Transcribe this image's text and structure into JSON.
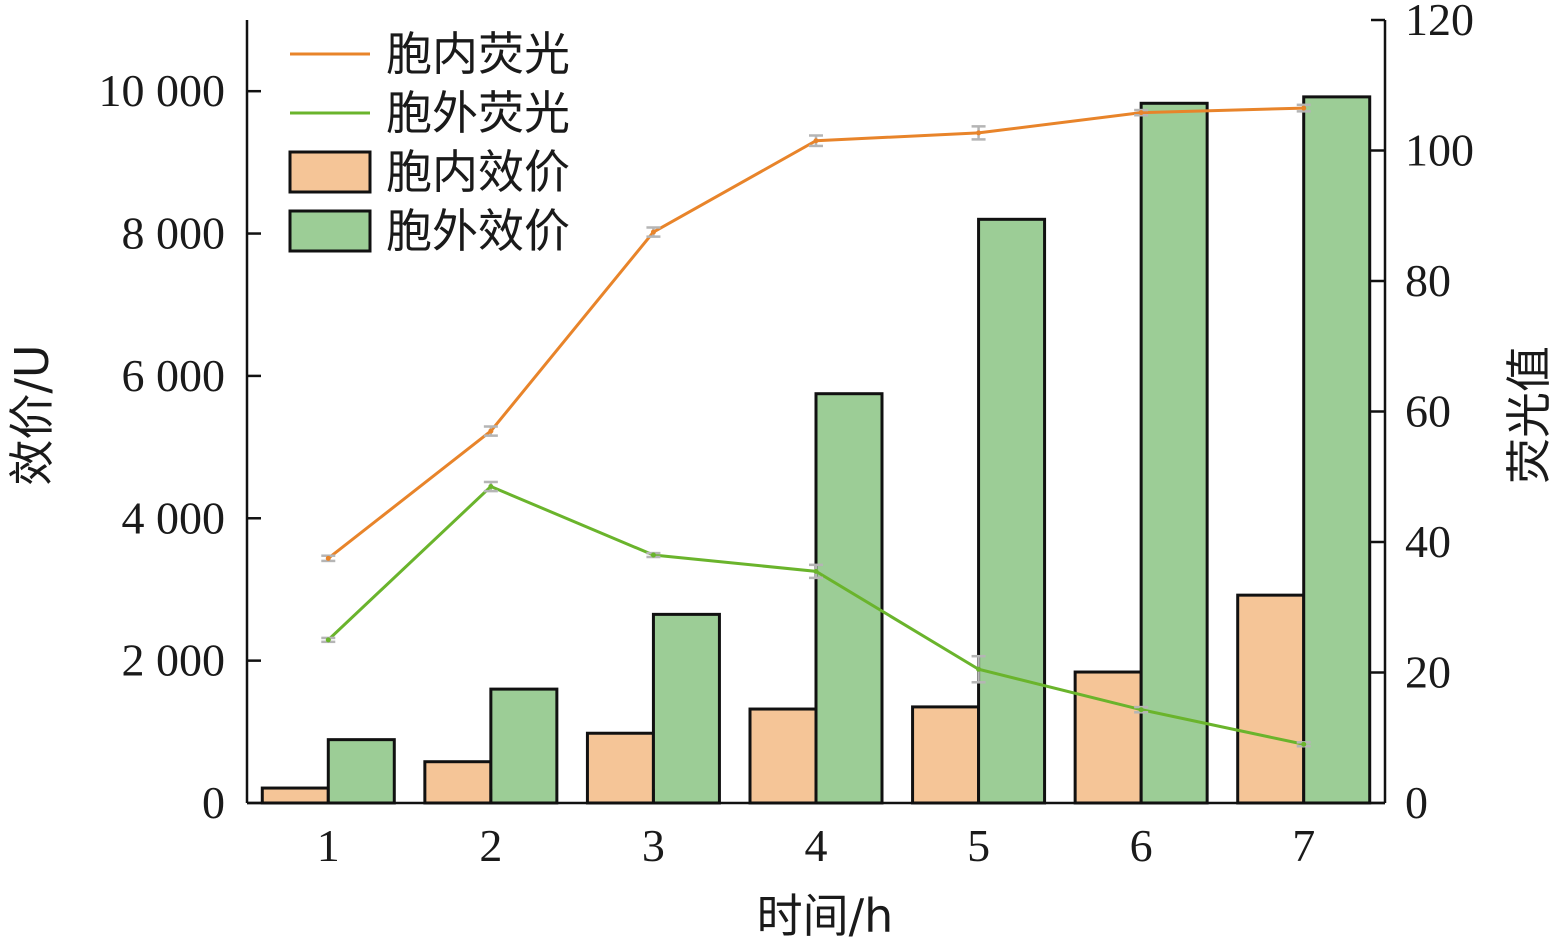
{
  "chart_data": {
    "type": "bar",
    "categories": [
      "1",
      "2",
      "3",
      "4",
      "5",
      "6",
      "7"
    ],
    "xlabel": "时间/h",
    "ylabel": "效价/U",
    "y2label": "荧光值",
    "ylim": [
      0,
      11000
    ],
    "y2lim": [
      0,
      120
    ],
    "yticks": [
      0,
      2000,
      4000,
      6000,
      8000,
      10000
    ],
    "ytick_labels": [
      "0",
      "2 000",
      "4 000",
      "6 000",
      "8 000",
      "10 000"
    ],
    "y2ticks": [
      0,
      20,
      40,
      60,
      80,
      100,
      120
    ],
    "y2tick_labels": [
      "0",
      "20",
      "40",
      "60",
      "80",
      "100",
      "120"
    ],
    "legend_position": "top-left",
    "grid": false,
    "bar_series": [
      {
        "name": "胞内效价",
        "color": "#f5c597",
        "values": [
          210,
          580,
          980,
          1320,
          1350,
          1840,
          2920
        ]
      },
      {
        "name": "胞外效价",
        "color": "#9ccd96",
        "values": [
          890,
          1600,
          2650,
          5750,
          8200,
          9830,
          9920
        ]
      }
    ],
    "line_series": [
      {
        "name": "胞内荧光",
        "color": "#e8842a",
        "axis": "right",
        "values": [
          37.5,
          57,
          87.5,
          101.5,
          102.7,
          105.8,
          106.5
        ],
        "errors": [
          0.4,
          0.7,
          0.7,
          0.8,
          1.0,
          0.4,
          0.5
        ]
      },
      {
        "name": "胞外荧光",
        "color": "#6ab42c",
        "axis": "right",
        "values": [
          25,
          48.5,
          38,
          35.5,
          20.5,
          14.3,
          9
        ],
        "errors": [
          0.3,
          0.7,
          0.3,
          1.0,
          2.0,
          0.4,
          0.3
        ]
      }
    ],
    "legend_order": [
      "胞内荧光",
      "胞外荧光",
      "胞内效价",
      "胞外效价"
    ]
  }
}
